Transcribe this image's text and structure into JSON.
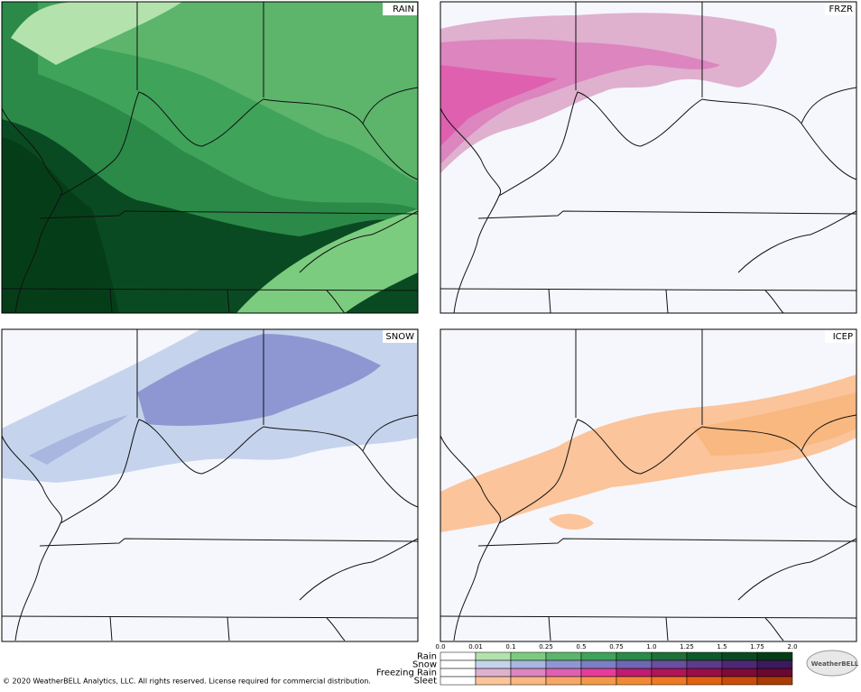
{
  "panels": [
    {
      "label": "RAIN"
    },
    {
      "label": "FRZR"
    },
    {
      "label": "SNOW"
    },
    {
      "label": "ICEP"
    }
  ],
  "legend": {
    "ticks": [
      "0.0",
      "0.01",
      "0.1",
      "0.25",
      "0.5",
      "0.75",
      "1.0",
      "1.25",
      "1.5",
      "1.75",
      "2.0"
    ],
    "rows": [
      {
        "name": "Rain",
        "colors": [
          "#ffffff",
          "#b3e2ad",
          "#7ccc80",
          "#5cb56b",
          "#3fa35a",
          "#2b8a48",
          "#1c7038",
          "#0f5a2a",
          "#0a4a22",
          "#063d19"
        ]
      },
      {
        "name": "Snow",
        "colors": [
          "#ffffff",
          "#c6d3ec",
          "#a9b6e0",
          "#8f97d2",
          "#7d7ec4",
          "#7166b4",
          "#6a4ea0",
          "#5e3a8c",
          "#4e2876",
          "#3c1a5e"
        ]
      },
      {
        "name": "Freezing Rain",
        "colors": [
          "#ffffff",
          "#e0b0cf",
          "#dc85bf",
          "#e060b0",
          "#e83c9a",
          "#c01c70",
          "#b01558",
          "#9a0e48",
          "#7e0a38",
          "#6a0830"
        ]
      },
      {
        "name": "Sleet",
        "colors": [
          "#ffffff",
          "#fbc49a",
          "#f8b880",
          "#f5a864",
          "#f29a4a",
          "#ef8a34",
          "#ec7a22",
          "#de6210",
          "#c84e08",
          "#a83c04"
        ]
      }
    ]
  },
  "footer": {
    "copyright": "© 2020 WeatherBELL Analytics, LLC. All rights reserved. License required for commercial distribution.",
    "logo": "WeatherBELL"
  }
}
